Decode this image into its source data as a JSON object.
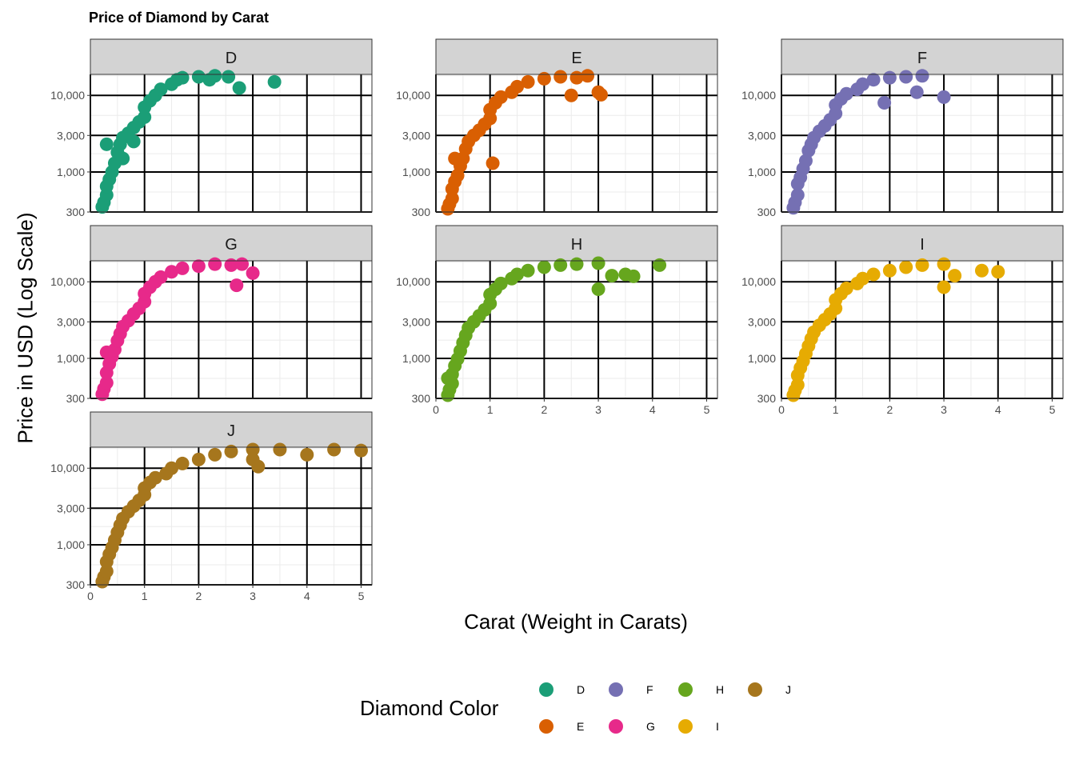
{
  "chart_data": {
    "type": "scatter",
    "title": "Price of Diamond by Carat",
    "xlabel": "Carat (Weight in Carats)",
    "ylabel": "Price in USD (Log Scale)",
    "xlim": [
      0,
      5.2
    ],
    "ylim": [
      300,
      18800
    ],
    "yscale": "log10",
    "x_ticks": [
      0,
      1,
      2,
      3,
      4,
      5
    ],
    "x_tick_labels": [
      "0",
      "1",
      "2",
      "3",
      "4",
      "5"
    ],
    "y_ticks": [
      300,
      1000,
      3000,
      10000
    ],
    "y_tick_labels": [
      "300",
      "1,000",
      "3,000",
      "10,000"
    ],
    "grid": true,
    "facets": [
      "D",
      "E",
      "F",
      "G",
      "H",
      "I",
      "J"
    ],
    "legend": {
      "title": "Diamond Color",
      "placement": "bottom",
      "entries": [
        {
          "label": "D",
          "color": "#1B9E77"
        },
        {
          "label": "E",
          "color": "#D95F02"
        },
        {
          "label": "F",
          "color": "#7570B3"
        },
        {
          "label": "G",
          "color": "#E7298A"
        },
        {
          "label": "H",
          "color": "#66A61E"
        },
        {
          "label": "I",
          "color": "#E6AB02"
        },
        {
          "label": "J",
          "color": "#A6761D"
        }
      ]
    },
    "series": [
      {
        "name": "D",
        "color": "#1B9E77",
        "points": [
          [
            0.22,
            350
          ],
          [
            0.25,
            400
          ],
          [
            0.3,
            500
          ],
          [
            0.3,
            650
          ],
          [
            0.35,
            800
          ],
          [
            0.4,
            1000
          ],
          [
            0.45,
            1300
          ],
          [
            0.5,
            1800
          ],
          [
            0.55,
            2300
          ],
          [
            0.6,
            2800
          ],
          [
            0.7,
            3200
          ],
          [
            0.8,
            3800
          ],
          [
            0.9,
            4500
          ],
          [
            1.0,
            5200
          ],
          [
            1.0,
            7000
          ],
          [
            1.1,
            8500
          ],
          [
            1.2,
            10000
          ],
          [
            1.3,
            12000
          ],
          [
            1.5,
            14000
          ],
          [
            1.6,
            16000
          ],
          [
            1.7,
            17000
          ],
          [
            2.0,
            17500
          ],
          [
            2.2,
            16000
          ],
          [
            2.3,
            18000
          ],
          [
            2.55,
            17500
          ],
          [
            2.75,
            12500
          ],
          [
            3.4,
            15000
          ],
          [
            0.3,
            2300
          ],
          [
            0.6,
            1500
          ],
          [
            0.8,
            2500
          ]
        ]
      },
      {
        "name": "E",
        "color": "#D95F02",
        "points": [
          [
            0.22,
            330
          ],
          [
            0.25,
            380
          ],
          [
            0.3,
            450
          ],
          [
            0.3,
            600
          ],
          [
            0.35,
            750
          ],
          [
            0.4,
            900
          ],
          [
            0.45,
            1200
          ],
          [
            0.5,
            1500
          ],
          [
            0.55,
            2000
          ],
          [
            0.6,
            2500
          ],
          [
            0.7,
            3000
          ],
          [
            0.8,
            3500
          ],
          [
            0.9,
            4200
          ],
          [
            1.0,
            5000
          ],
          [
            1.0,
            6500
          ],
          [
            1.1,
            8000
          ],
          [
            1.2,
            9500
          ],
          [
            1.4,
            11000
          ],
          [
            1.5,
            13000
          ],
          [
            1.7,
            15000
          ],
          [
            2.0,
            16500
          ],
          [
            2.3,
            17500
          ],
          [
            2.6,
            17000
          ],
          [
            2.8,
            18000
          ],
          [
            2.5,
            10000
          ],
          [
            3.0,
            11000
          ],
          [
            3.05,
            10200
          ],
          [
            1.05,
            1300
          ],
          [
            0.35,
            1500
          ]
        ]
      },
      {
        "name": "F",
        "color": "#7570B3",
        "points": [
          [
            0.22,
            340
          ],
          [
            0.25,
            400
          ],
          [
            0.3,
            500
          ],
          [
            0.3,
            700
          ],
          [
            0.35,
            850
          ],
          [
            0.4,
            1100
          ],
          [
            0.45,
            1400
          ],
          [
            0.5,
            1900
          ],
          [
            0.55,
            2300
          ],
          [
            0.6,
            2800
          ],
          [
            0.7,
            3400
          ],
          [
            0.8,
            4000
          ],
          [
            0.9,
            4800
          ],
          [
            1.0,
            5800
          ],
          [
            1.0,
            7500
          ],
          [
            1.1,
            9000
          ],
          [
            1.2,
            10500
          ],
          [
            1.4,
            12000
          ],
          [
            1.5,
            14000
          ],
          [
            1.7,
            16000
          ],
          [
            2.0,
            17000
          ],
          [
            2.3,
            17500
          ],
          [
            2.6,
            18000
          ],
          [
            2.5,
            11000
          ],
          [
            3.0,
            9500
          ],
          [
            1.9,
            8000
          ]
        ]
      },
      {
        "name": "G",
        "color": "#E7298A",
        "points": [
          [
            0.22,
            340
          ],
          [
            0.25,
            400
          ],
          [
            0.3,
            480
          ],
          [
            0.3,
            650
          ],
          [
            0.35,
            850
          ],
          [
            0.4,
            1050
          ],
          [
            0.45,
            1300
          ],
          [
            0.5,
            1700
          ],
          [
            0.55,
            2100
          ],
          [
            0.6,
            2600
          ],
          [
            0.7,
            3100
          ],
          [
            0.8,
            3800
          ],
          [
            0.9,
            4500
          ],
          [
            1.0,
            5500
          ],
          [
            1.0,
            7000
          ],
          [
            1.1,
            8500
          ],
          [
            1.2,
            10000
          ],
          [
            1.3,
            11500
          ],
          [
            1.5,
            13500
          ],
          [
            1.7,
            15000
          ],
          [
            2.0,
            16000
          ],
          [
            2.3,
            17000
          ],
          [
            2.6,
            16500
          ],
          [
            2.8,
            17000
          ],
          [
            2.7,
            9000
          ],
          [
            3.0,
            13000
          ],
          [
            0.3,
            1200
          ]
        ]
      },
      {
        "name": "H",
        "color": "#66A61E",
        "points": [
          [
            0.22,
            330
          ],
          [
            0.25,
            390
          ],
          [
            0.3,
            470
          ],
          [
            0.3,
            620
          ],
          [
            0.35,
            800
          ],
          [
            0.4,
            980
          ],
          [
            0.45,
            1250
          ],
          [
            0.5,
            1600
          ],
          [
            0.55,
            2000
          ],
          [
            0.6,
            2500
          ],
          [
            0.7,
            3000
          ],
          [
            0.8,
            3600
          ],
          [
            0.9,
            4300
          ],
          [
            1.0,
            5200
          ],
          [
            1.0,
            6800
          ],
          [
            1.1,
            8000
          ],
          [
            1.2,
            9500
          ],
          [
            1.4,
            11000
          ],
          [
            1.5,
            12500
          ],
          [
            1.7,
            14000
          ],
          [
            2.0,
            15500
          ],
          [
            2.3,
            16500
          ],
          [
            2.6,
            17000
          ],
          [
            3.0,
            17500
          ],
          [
            3.0,
            8000
          ],
          [
            3.25,
            12000
          ],
          [
            3.5,
            12500
          ],
          [
            3.65,
            11800
          ],
          [
            4.13,
            16500
          ],
          [
            0.22,
            550
          ]
        ]
      },
      {
        "name": "I",
        "color": "#E6AB02",
        "points": [
          [
            0.22,
            330
          ],
          [
            0.25,
            380
          ],
          [
            0.3,
            450
          ],
          [
            0.3,
            600
          ],
          [
            0.35,
            750
          ],
          [
            0.4,
            920
          ],
          [
            0.45,
            1150
          ],
          [
            0.5,
            1450
          ],
          [
            0.55,
            1800
          ],
          [
            0.6,
            2200
          ],
          [
            0.7,
            2700
          ],
          [
            0.8,
            3200
          ],
          [
            0.9,
            3800
          ],
          [
            1.0,
            4500
          ],
          [
            1.0,
            5800
          ],
          [
            1.1,
            7000
          ],
          [
            1.2,
            8200
          ],
          [
            1.4,
            9500
          ],
          [
            1.5,
            11000
          ],
          [
            1.7,
            12500
          ],
          [
            2.0,
            14000
          ],
          [
            2.3,
            15500
          ],
          [
            2.6,
            16500
          ],
          [
            3.0,
            17000
          ],
          [
            3.0,
            8500
          ],
          [
            3.2,
            12000
          ],
          [
            3.7,
            14000
          ],
          [
            4.0,
            13500
          ]
        ]
      },
      {
        "name": "J",
        "color": "#A6761D",
        "points": [
          [
            0.22,
            330
          ],
          [
            0.25,
            380
          ],
          [
            0.3,
            450
          ],
          [
            0.3,
            600
          ],
          [
            0.35,
            750
          ],
          [
            0.4,
            920
          ],
          [
            0.45,
            1150
          ],
          [
            0.5,
            1450
          ],
          [
            0.55,
            1800
          ],
          [
            0.6,
            2200
          ],
          [
            0.7,
            2700
          ],
          [
            0.8,
            3200
          ],
          [
            0.9,
            3800
          ],
          [
            1.0,
            4500
          ],
          [
            1.0,
            5500
          ],
          [
            1.1,
            6500
          ],
          [
            1.2,
            7500
          ],
          [
            1.4,
            8500
          ],
          [
            1.5,
            10000
          ],
          [
            1.7,
            11500
          ],
          [
            2.0,
            13000
          ],
          [
            2.3,
            15000
          ],
          [
            2.6,
            16500
          ],
          [
            3.0,
            17500
          ],
          [
            3.0,
            13000
          ],
          [
            3.1,
            10500
          ],
          [
            3.5,
            17500
          ],
          [
            4.0,
            15000
          ],
          [
            4.5,
            17500
          ],
          [
            5.0,
            17000
          ]
        ]
      }
    ]
  }
}
